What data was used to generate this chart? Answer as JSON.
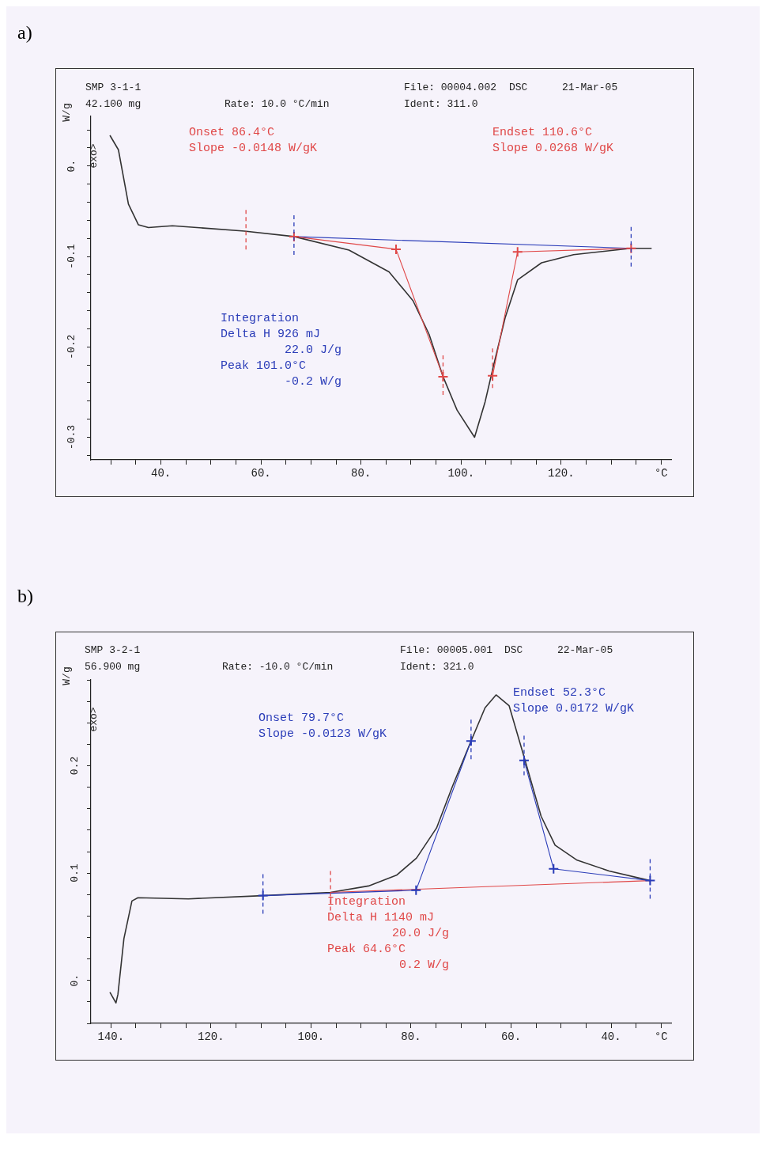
{
  "chart_data": [
    {
      "type": "line",
      "title": "a)",
      "ylabel": "W/g",
      "marker": "none",
      "grid": false,
      "legend": false,
      "annotations": [
        "SMP 3-1-1",
        "42.100 mg",
        "Rate: 10.0 °C/min",
        "File: 00004.002",
        "DSC",
        "21-Mar-05",
        "Ident: 311.0",
        "exo>",
        "Onset 86.4°C",
        "Slope -0.0148 W/gK",
        "Endset 110.6°C",
        "Slope 0.0268 W/gK",
        "Integration",
        "Delta H 926 mJ",
        "22.0 J/g",
        "Peak 101.0°C",
        "-0.2 W/g"
      ],
      "xlim": [
        26,
        142
      ],
      "ylim": [
        -0.325,
        0.055
      ],
      "xticks": [
        {
          "value": 30,
          "label": null
        },
        {
          "value": 35,
          "label": null
        },
        {
          "value": 40,
          "label": "40."
        },
        {
          "value": 45,
          "label": null
        },
        {
          "value": 50,
          "label": null
        },
        {
          "value": 55,
          "label": null
        },
        {
          "value": 60,
          "label": "60."
        },
        {
          "value": 65,
          "label": null
        },
        {
          "value": 70,
          "label": null
        },
        {
          "value": 75,
          "label": null
        },
        {
          "value": 80,
          "label": "80."
        },
        {
          "value": 85,
          "label": null
        },
        {
          "value": 90,
          "label": null
        },
        {
          "value": 95,
          "label": null
        },
        {
          "value": 100,
          "label": "100."
        },
        {
          "value": 105,
          "label": null
        },
        {
          "value": 110,
          "label": null
        },
        {
          "value": 115,
          "label": null
        },
        {
          "value": 120,
          "label": "120."
        },
        {
          "value": 125,
          "label": null
        },
        {
          "value": 130,
          "label": null
        },
        {
          "value": 135,
          "label": null
        },
        {
          "value": 140,
          "label": "°C"
        }
      ],
      "yticks": [
        {
          "value": 0.04,
          "label": null
        },
        {
          "value": 0.02,
          "label": null
        },
        {
          "value": 0,
          "label": "0."
        },
        {
          "value": -0.02,
          "label": null
        },
        {
          "value": -0.04,
          "label": null
        },
        {
          "value": -0.06,
          "label": null
        },
        {
          "value": -0.08,
          "label": null
        },
        {
          "value": -0.1,
          "label": "-0.1"
        },
        {
          "value": -0.12,
          "label": null
        },
        {
          "value": -0.14,
          "label": null
        },
        {
          "value": -0.16,
          "label": null
        },
        {
          "value": -0.18,
          "label": null
        },
        {
          "value": -0.2,
          "label": "-0.2"
        },
        {
          "value": -0.22,
          "label": null
        },
        {
          "value": -0.24,
          "label": null
        },
        {
          "value": -0.26,
          "label": null
        },
        {
          "value": -0.28,
          "label": null
        },
        {
          "value": -0.3,
          "label": "-0.3"
        },
        {
          "value": -0.32,
          "label": null
        }
      ],
      "ref_lines": [
        {
          "axis": "x",
          "value": 57.0,
          "color": "#e04848",
          "line_style": "dashed"
        },
        {
          "axis": "x",
          "value": 66.6,
          "color": "#2a3cb8",
          "line_style": "dashed"
        },
        {
          "axis": "x",
          "value": 96.4,
          "color": "#e04848",
          "line_style": "dashed"
        },
        {
          "axis": "x",
          "value": 106.3,
          "color": "#e04848",
          "line_style": "dashed"
        },
        {
          "axis": "x",
          "value": 134,
          "color": "#2a3cb8",
          "line_style": "dashed"
        }
      ],
      "series": [
        {
          "color": "#333333",
          "x": [
            29.8,
            31.5,
            33.5,
            35.5,
            37.5,
            42.3,
            56.7,
            66.6,
            77.6,
            85.6,
            90.4,
            93.6,
            96.4,
            99.2,
            102.7,
            104.8,
            106.4,
            108.8,
            111.3,
            116.1,
            122.5,
            134,
            138.1
          ],
          "values": [
            0.034,
            0.018,
            -0.042,
            -0.065,
            -0.068,
            -0.066,
            -0.072,
            -0.078,
            -0.093,
            -0.117,
            -0.149,
            -0.186,
            -0.233,
            -0.27,
            -0.3,
            -0.261,
            -0.223,
            -0.168,
            -0.126,
            -0.107,
            -0.098,
            -0.091,
            -0.091
          ]
        },
        {
          "color": "#2a3cb8",
          "x": [
            66.6,
            134
          ],
          "values": [
            -0.078,
            -0.091
          ]
        },
        {
          "color": "#e04848",
          "marker": "cross",
          "x": [
            66.6,
            87.0,
            96.4
          ],
          "values": [
            -0.078,
            -0.092,
            -0.233
          ]
        },
        {
          "color": "#e04848",
          "marker": "cross",
          "x": [
            106.3,
            111.3,
            134
          ],
          "values": [
            -0.232,
            -0.095,
            -0.091
          ]
        }
      ]
    },
    {
      "type": "line",
      "title": "b)",
      "ylabel": "W/g",
      "marker": "none",
      "grid": false,
      "legend": false,
      "annotations": [
        "SMP 3-2-1",
        "56.900 mg",
        "Rate: -10.0 °C/min",
        "File: 00005.001",
        "DSC",
        "22-Mar-05",
        "Ident: 321.0",
        "exo>",
        "Onset 79.7°C",
        "Slope -0.0123 W/gK",
        "Endset 52.3°C",
        "Slope 0.0172 W/gK",
        "Integration",
        "Delta H 1140 mJ",
        "20.0 J/g",
        "Peak 64.6°C",
        "0.2 W/g"
      ],
      "xlim": [
        144,
        28
      ],
      "ylim": [
        -0.04,
        0.28
      ],
      "xticks": [
        {
          "value": 140,
          "label": "140."
        },
        {
          "value": 135,
          "label": null
        },
        {
          "value": 130,
          "label": null
        },
        {
          "value": 125,
          "label": null
        },
        {
          "value": 120,
          "label": "120."
        },
        {
          "value": 115,
          "label": null
        },
        {
          "value": 110,
          "label": null
        },
        {
          "value": 105,
          "label": null
        },
        {
          "value": 100,
          "label": "100."
        },
        {
          "value": 95,
          "label": null
        },
        {
          "value": 90,
          "label": null
        },
        {
          "value": 85,
          "label": null
        },
        {
          "value": 80,
          "label": "80."
        },
        {
          "value": 75,
          "label": null
        },
        {
          "value": 70,
          "label": null
        },
        {
          "value": 65,
          "label": null
        },
        {
          "value": 60,
          "label": "60."
        },
        {
          "value": 55,
          "label": null
        },
        {
          "value": 50,
          "label": null
        },
        {
          "value": 45,
          "label": null
        },
        {
          "value": 40,
          "label": "40."
        },
        {
          "value": 35,
          "label": null
        },
        {
          "value": 30,
          "label": "°C"
        }
      ],
      "yticks": [
        {
          "value": -0.04,
          "label": null
        },
        {
          "value": -0.02,
          "label": null
        },
        {
          "value": 0,
          "label": "0."
        },
        {
          "value": 0.02,
          "label": null
        },
        {
          "value": 0.04,
          "label": null
        },
        {
          "value": 0.06,
          "label": null
        },
        {
          "value": 0.08,
          "label": null
        },
        {
          "value": 0.1,
          "label": "0.1"
        },
        {
          "value": 0.12,
          "label": null
        },
        {
          "value": 0.14,
          "label": null
        },
        {
          "value": 0.16,
          "label": null
        },
        {
          "value": 0.18,
          "label": null
        },
        {
          "value": 0.2,
          "label": "0.2"
        },
        {
          "value": 0.22,
          "label": null
        },
        {
          "value": 0.24,
          "label": null
        },
        {
          "value": 0.26,
          "label": null
        },
        {
          "value": 0.28,
          "label": null
        }
      ],
      "ref_lines": [
        {
          "axis": "x",
          "value": 109.6,
          "color": "#2a3cb8",
          "line_style": "dashed"
        },
        {
          "axis": "x",
          "value": 96.1,
          "color": "#e04848",
          "line_style": "dashed"
        },
        {
          "axis": "x",
          "value": 68.0,
          "color": "#2a3cb8",
          "line_style": "dashed"
        },
        {
          "axis": "x",
          "value": 57.4,
          "color": "#2a3cb8",
          "line_style": "dashed"
        },
        {
          "axis": "x",
          "value": 32.2,
          "color": "#2a3cb8",
          "line_style": "dashed"
        }
      ],
      "series": [
        {
          "color": "#333333",
          "x": [
            140.2,
            139.0,
            138.6,
            137.4,
            135.8,
            134.6,
            124.5,
            109.6,
            96.1,
            88.5,
            82.9,
            78.9,
            74.9,
            71.7,
            68.0,
            65.2,
            63.0,
            60.4,
            57.2,
            54.0,
            51.2,
            46.8,
            40.4,
            32.2
          ],
          "values": [
            -0.011,
            -0.021,
            -0.013,
            0.039,
            0.074,
            0.077,
            0.076,
            0.079,
            0.082,
            0.088,
            0.098,
            0.114,
            0.142,
            0.181,
            0.223,
            0.254,
            0.266,
            0.256,
            0.205,
            0.153,
            0.126,
            0.112,
            0.102,
            0.093
          ]
        },
        {
          "color": "#e04848",
          "x": [
            96.1,
            32.2
          ],
          "values": [
            0.082,
            0.093
          ]
        },
        {
          "color": "#2a3cb8",
          "marker": "cross",
          "x": [
            109.6,
            79.0,
            68.0
          ],
          "values": [
            0.079,
            0.084,
            0.223
          ]
        },
        {
          "color": "#2a3cb8",
          "marker": "cross",
          "x": [
            57.4,
            51.5,
            32.2
          ],
          "values": [
            0.205,
            0.104,
            0.093
          ]
        }
      ]
    }
  ]
}
